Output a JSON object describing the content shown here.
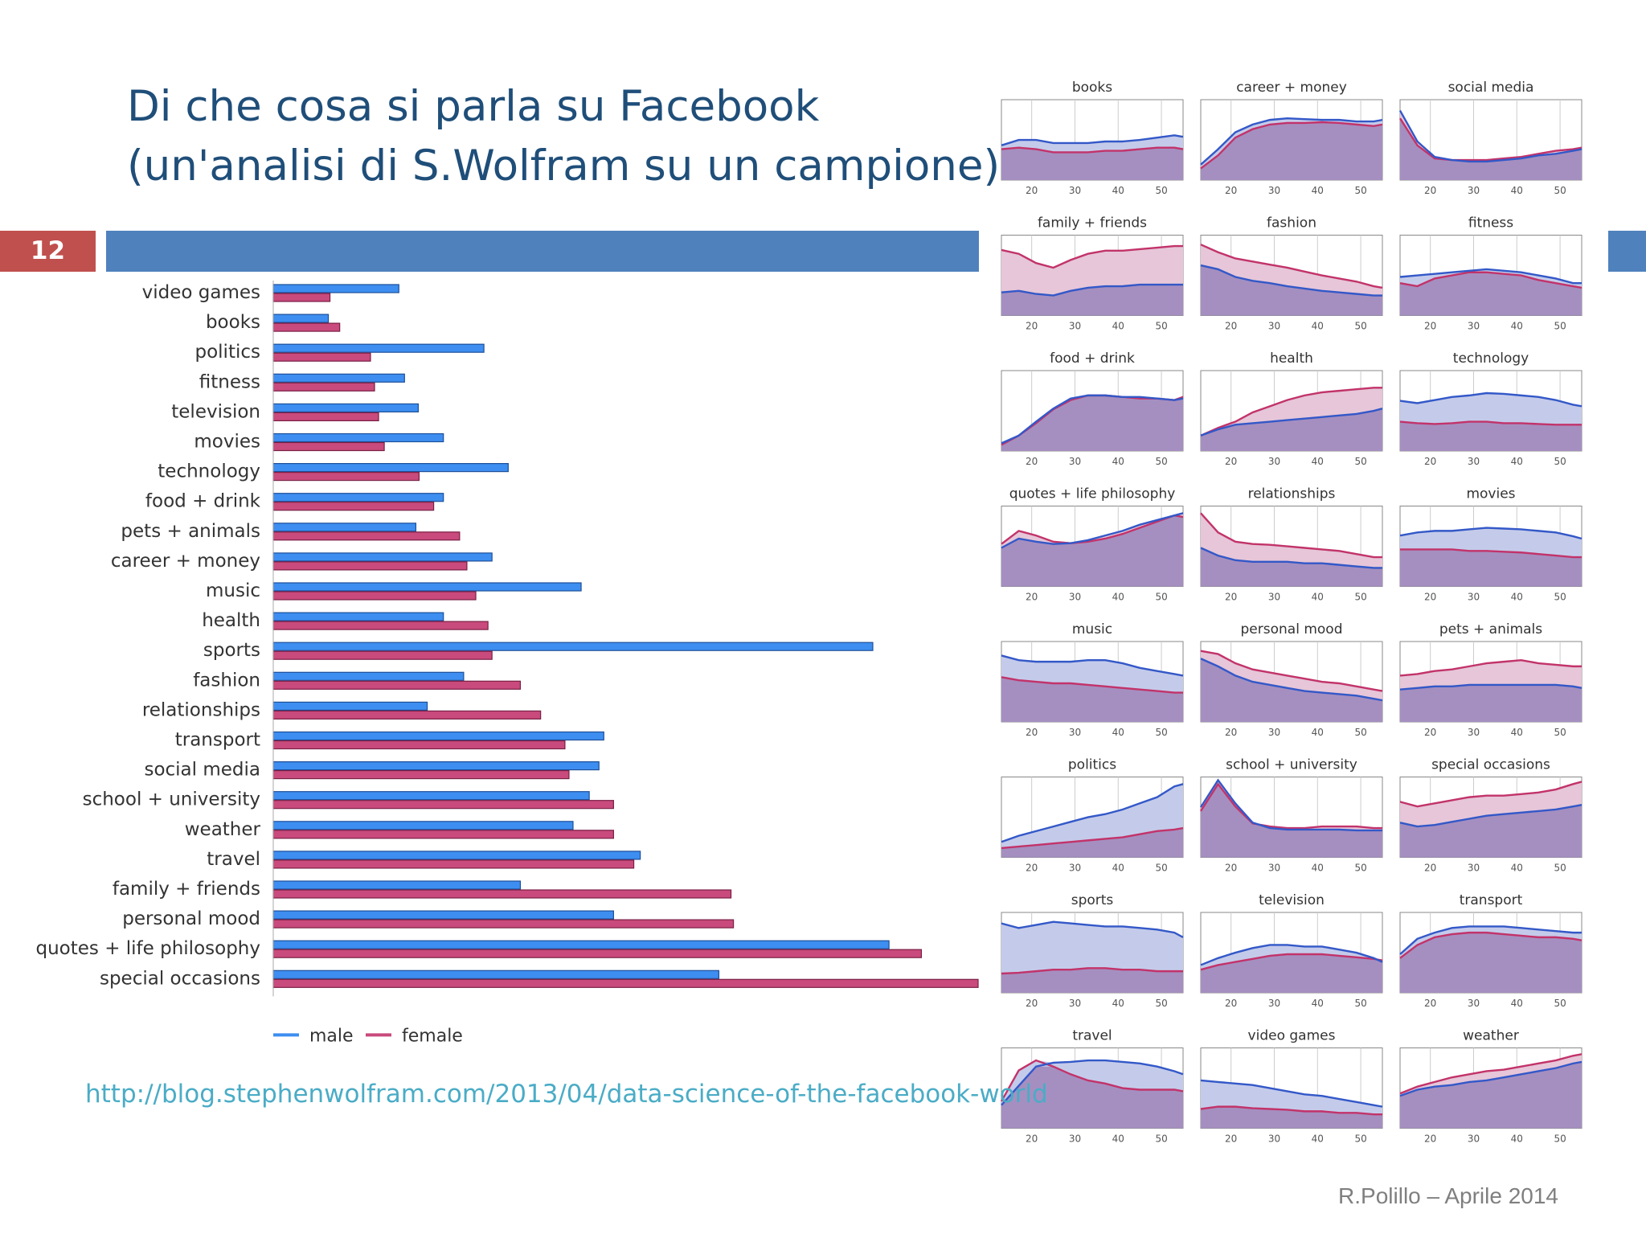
{
  "slide": {
    "title_line1": "Di che cosa si parla su Facebook",
    "title_line2": "(un'analisi di S.Wolfram su un campione)",
    "number": "12",
    "source_url": "http://blog.stephenwolfram.com/2013/04/data-science-of-the-facebook-world",
    "footer": "R.Polillo – Aprile 2014"
  },
  "chart_data": [
    {
      "type": "bar",
      "orientation": "horizontal",
      "categories": [
        "video games",
        "books",
        "politics",
        "fitness",
        "television",
        "movies",
        "technology",
        "food + drink",
        "pets + animals",
        "career + money",
        "music",
        "health",
        "sports",
        "fashion",
        "relationships",
        "transport",
        "social media",
        "school + university",
        "weather",
        "travel",
        "family + friends",
        "personal mood",
        "quotes + life philosophy",
        "special occasions"
      ],
      "series": [
        {
          "name": "male",
          "color": "#3d8ef0",
          "values": [
            15.5,
            6.8,
            26,
            16.2,
            17.9,
            21,
            29,
            21,
            17.6,
            27,
            38,
            21,
            74,
            23.5,
            19,
            40.8,
            40.2,
            39,
            37,
            45.3,
            30.5,
            42,
            76,
            55
          ]
        },
        {
          "name": "female",
          "color": "#c94a7c",
          "values": [
            7,
            8.2,
            12,
            12.5,
            13,
            13.7,
            18,
            19.8,
            23,
            23.9,
            25,
            26.5,
            27,
            30.5,
            33,
            36,
            36.5,
            42,
            42,
            44.5,
            56.5,
            56.8,
            80,
            87
          ]
        }
      ],
      "legend": "bottom-left",
      "xlim": [
        0,
        87
      ]
    },
    {
      "type": "area",
      "panel_order": "row-major",
      "x_ticks": [
        20,
        30,
        40,
        50
      ],
      "xlim": [
        13,
        55
      ],
      "ylim": [
        0,
        1
      ],
      "colors": {
        "male": "#3358c8",
        "female": "#c2336a",
        "overlap": "#a58fc0",
        "male_fill": "#c4cbea",
        "female_fill": "#e6c6d8"
      },
      "x": [
        13,
        17,
        21,
        25,
        29,
        33,
        37,
        41,
        45,
        49,
        53,
        55
      ],
      "panels": [
        {
          "title": "books",
          "male": [
            0.45,
            0.52,
            0.52,
            0.48,
            0.48,
            0.48,
            0.5,
            0.5,
            0.52,
            0.55,
            0.58,
            0.56
          ],
          "female": [
            0.4,
            0.42,
            0.4,
            0.36,
            0.36,
            0.36,
            0.38,
            0.38,
            0.4,
            0.42,
            0.42,
            0.4
          ]
        },
        {
          "title": "career + money",
          "male": [
            0.2,
            0.4,
            0.62,
            0.72,
            0.78,
            0.8,
            0.79,
            0.78,
            0.78,
            0.76,
            0.76,
            0.78
          ],
          "female": [
            0.15,
            0.32,
            0.55,
            0.66,
            0.72,
            0.74,
            0.74,
            0.75,
            0.74,
            0.72,
            0.7,
            0.72
          ]
        },
        {
          "title": "social media",
          "male": [
            0.9,
            0.5,
            0.3,
            0.26,
            0.24,
            0.24,
            0.26,
            0.28,
            0.32,
            0.34,
            0.38,
            0.4
          ],
          "female": [
            0.8,
            0.45,
            0.28,
            0.26,
            0.26,
            0.26,
            0.28,
            0.3,
            0.34,
            0.38,
            0.4,
            0.42
          ]
        },
        {
          "title": "family + friends",
          "male": [
            0.3,
            0.32,
            0.28,
            0.26,
            0.32,
            0.36,
            0.38,
            0.38,
            0.4,
            0.4,
            0.4,
            0.4
          ],
          "female": [
            0.85,
            0.8,
            0.68,
            0.62,
            0.72,
            0.8,
            0.84,
            0.84,
            0.86,
            0.88,
            0.9,
            0.9
          ]
        },
        {
          "title": "fashion",
          "male": [
            0.65,
            0.6,
            0.5,
            0.45,
            0.42,
            0.38,
            0.35,
            0.32,
            0.3,
            0.28,
            0.26,
            0.26
          ],
          "female": [
            0.92,
            0.82,
            0.74,
            0.7,
            0.66,
            0.62,
            0.57,
            0.52,
            0.48,
            0.44,
            0.38,
            0.36
          ]
        },
        {
          "title": "fitness",
          "male": [
            0.5,
            0.52,
            0.54,
            0.56,
            0.58,
            0.6,
            0.58,
            0.56,
            0.52,
            0.48,
            0.42,
            0.42
          ],
          "female": [
            0.42,
            0.38,
            0.48,
            0.52,
            0.56,
            0.56,
            0.54,
            0.52,
            0.46,
            0.42,
            0.38,
            0.36
          ]
        },
        {
          "title": "food + drink",
          "male": [
            0.1,
            0.2,
            0.38,
            0.55,
            0.68,
            0.72,
            0.72,
            0.7,
            0.7,
            0.68,
            0.66,
            0.68
          ],
          "female": [
            0.08,
            0.2,
            0.36,
            0.54,
            0.66,
            0.72,
            0.72,
            0.7,
            0.68,
            0.68,
            0.66,
            0.7
          ]
        },
        {
          "title": "health",
          "male": [
            0.2,
            0.28,
            0.34,
            0.36,
            0.38,
            0.4,
            0.42,
            0.44,
            0.46,
            0.48,
            0.52,
            0.55
          ],
          "female": [
            0.2,
            0.3,
            0.38,
            0.5,
            0.58,
            0.66,
            0.72,
            0.76,
            0.78,
            0.8,
            0.82,
            0.82
          ]
        },
        {
          "title": "technology",
          "male": [
            0.65,
            0.62,
            0.66,
            0.7,
            0.72,
            0.75,
            0.74,
            0.72,
            0.7,
            0.66,
            0.6,
            0.58
          ],
          "female": [
            0.38,
            0.36,
            0.35,
            0.36,
            0.38,
            0.38,
            0.36,
            0.36,
            0.35,
            0.34,
            0.34,
            0.34
          ]
        },
        {
          "title": "quotes + life philosophy",
          "male": [
            0.5,
            0.62,
            0.58,
            0.55,
            0.56,
            0.6,
            0.66,
            0.72,
            0.8,
            0.86,
            0.92,
            0.95
          ],
          "female": [
            0.55,
            0.72,
            0.66,
            0.58,
            0.56,
            0.58,
            0.62,
            0.68,
            0.76,
            0.84,
            0.92,
            0.9
          ]
        },
        {
          "title": "relationships",
          "male": [
            0.5,
            0.4,
            0.34,
            0.32,
            0.32,
            0.32,
            0.3,
            0.3,
            0.28,
            0.26,
            0.24,
            0.24
          ],
          "female": [
            0.95,
            0.7,
            0.58,
            0.55,
            0.54,
            0.52,
            0.5,
            0.48,
            0.46,
            0.42,
            0.38,
            0.38
          ]
        },
        {
          "title": "movies",
          "male": [
            0.66,
            0.7,
            0.72,
            0.72,
            0.74,
            0.76,
            0.75,
            0.74,
            0.72,
            0.7,
            0.65,
            0.62
          ],
          "female": [
            0.48,
            0.48,
            0.48,
            0.48,
            0.46,
            0.46,
            0.45,
            0.44,
            0.42,
            0.4,
            0.38,
            0.38
          ]
        },
        {
          "title": "music",
          "male": [
            0.86,
            0.8,
            0.78,
            0.78,
            0.78,
            0.8,
            0.8,
            0.76,
            0.7,
            0.66,
            0.62,
            0.6
          ],
          "female": [
            0.58,
            0.54,
            0.52,
            0.5,
            0.5,
            0.48,
            0.46,
            0.44,
            0.42,
            0.4,
            0.38,
            0.38
          ]
        },
        {
          "title": "personal mood",
          "male": [
            0.82,
            0.72,
            0.6,
            0.52,
            0.48,
            0.44,
            0.4,
            0.38,
            0.36,
            0.34,
            0.3,
            0.28
          ],
          "female": [
            0.92,
            0.88,
            0.76,
            0.68,
            0.64,
            0.6,
            0.56,
            0.52,
            0.5,
            0.46,
            0.42,
            0.4
          ]
        },
        {
          "title": "pets + animals",
          "male": [
            0.42,
            0.44,
            0.46,
            0.46,
            0.48,
            0.48,
            0.48,
            0.48,
            0.48,
            0.48,
            0.46,
            0.44
          ],
          "female": [
            0.6,
            0.62,
            0.66,
            0.68,
            0.72,
            0.76,
            0.78,
            0.8,
            0.76,
            0.74,
            0.72,
            0.72
          ]
        },
        {
          "title": "politics",
          "male": [
            0.2,
            0.28,
            0.34,
            0.4,
            0.46,
            0.52,
            0.56,
            0.62,
            0.7,
            0.78,
            0.92,
            0.95
          ],
          "female": [
            0.12,
            0.14,
            0.16,
            0.18,
            0.2,
            0.22,
            0.24,
            0.26,
            0.3,
            0.34,
            0.36,
            0.38
          ]
        },
        {
          "title": "school + university",
          "male": [
            0.65,
            1.0,
            0.7,
            0.45,
            0.38,
            0.36,
            0.36,
            0.36,
            0.36,
            0.35,
            0.35,
            0.35
          ],
          "female": [
            0.6,
            0.95,
            0.66,
            0.44,
            0.4,
            0.38,
            0.38,
            0.4,
            0.4,
            0.4,
            0.38,
            0.38
          ]
        },
        {
          "title": "special occasions",
          "male": [
            0.45,
            0.4,
            0.42,
            0.46,
            0.5,
            0.54,
            0.56,
            0.58,
            0.6,
            0.62,
            0.66,
            0.68
          ],
          "female": [
            0.72,
            0.66,
            0.7,
            0.74,
            0.78,
            0.8,
            0.8,
            0.82,
            0.84,
            0.88,
            0.95,
            0.98
          ]
        },
        {
          "title": "sports",
          "male": [
            0.9,
            0.84,
            0.88,
            0.92,
            0.9,
            0.88,
            0.86,
            0.86,
            0.84,
            0.82,
            0.78,
            0.72
          ],
          "female": [
            0.25,
            0.26,
            0.28,
            0.3,
            0.3,
            0.32,
            0.32,
            0.3,
            0.3,
            0.28,
            0.28,
            0.28
          ]
        },
        {
          "title": "television",
          "male": [
            0.36,
            0.45,
            0.52,
            0.58,
            0.62,
            0.62,
            0.6,
            0.6,
            0.56,
            0.52,
            0.45,
            0.4
          ],
          "female": [
            0.3,
            0.36,
            0.4,
            0.44,
            0.48,
            0.5,
            0.5,
            0.5,
            0.48,
            0.46,
            0.44,
            0.42
          ]
        },
        {
          "title": "transport",
          "male": [
            0.5,
            0.7,
            0.78,
            0.84,
            0.86,
            0.86,
            0.86,
            0.84,
            0.82,
            0.8,
            0.78,
            0.78
          ],
          "female": [
            0.45,
            0.62,
            0.72,
            0.76,
            0.78,
            0.78,
            0.76,
            0.74,
            0.72,
            0.72,
            0.7,
            0.68
          ]
        },
        {
          "title": "travel",
          "male": [
            0.3,
            0.55,
            0.8,
            0.85,
            0.86,
            0.88,
            0.88,
            0.86,
            0.84,
            0.8,
            0.74,
            0.7
          ],
          "female": [
            0.35,
            0.75,
            0.88,
            0.8,
            0.7,
            0.62,
            0.58,
            0.52,
            0.5,
            0.5,
            0.5,
            0.48
          ]
        },
        {
          "title": "video games",
          "male": [
            0.62,
            0.6,
            0.58,
            0.56,
            0.52,
            0.48,
            0.44,
            0.42,
            0.38,
            0.34,
            0.3,
            0.28
          ],
          "female": [
            0.25,
            0.28,
            0.28,
            0.26,
            0.25,
            0.24,
            0.22,
            0.22,
            0.2,
            0.2,
            0.18,
            0.18
          ]
        },
        {
          "title": "weather",
          "male": [
            0.42,
            0.5,
            0.54,
            0.56,
            0.6,
            0.62,
            0.66,
            0.7,
            0.74,
            0.78,
            0.84,
            0.86
          ],
          "female": [
            0.45,
            0.54,
            0.6,
            0.66,
            0.7,
            0.74,
            0.76,
            0.8,
            0.84,
            0.88,
            0.94,
            0.96
          ]
        }
      ]
    }
  ]
}
